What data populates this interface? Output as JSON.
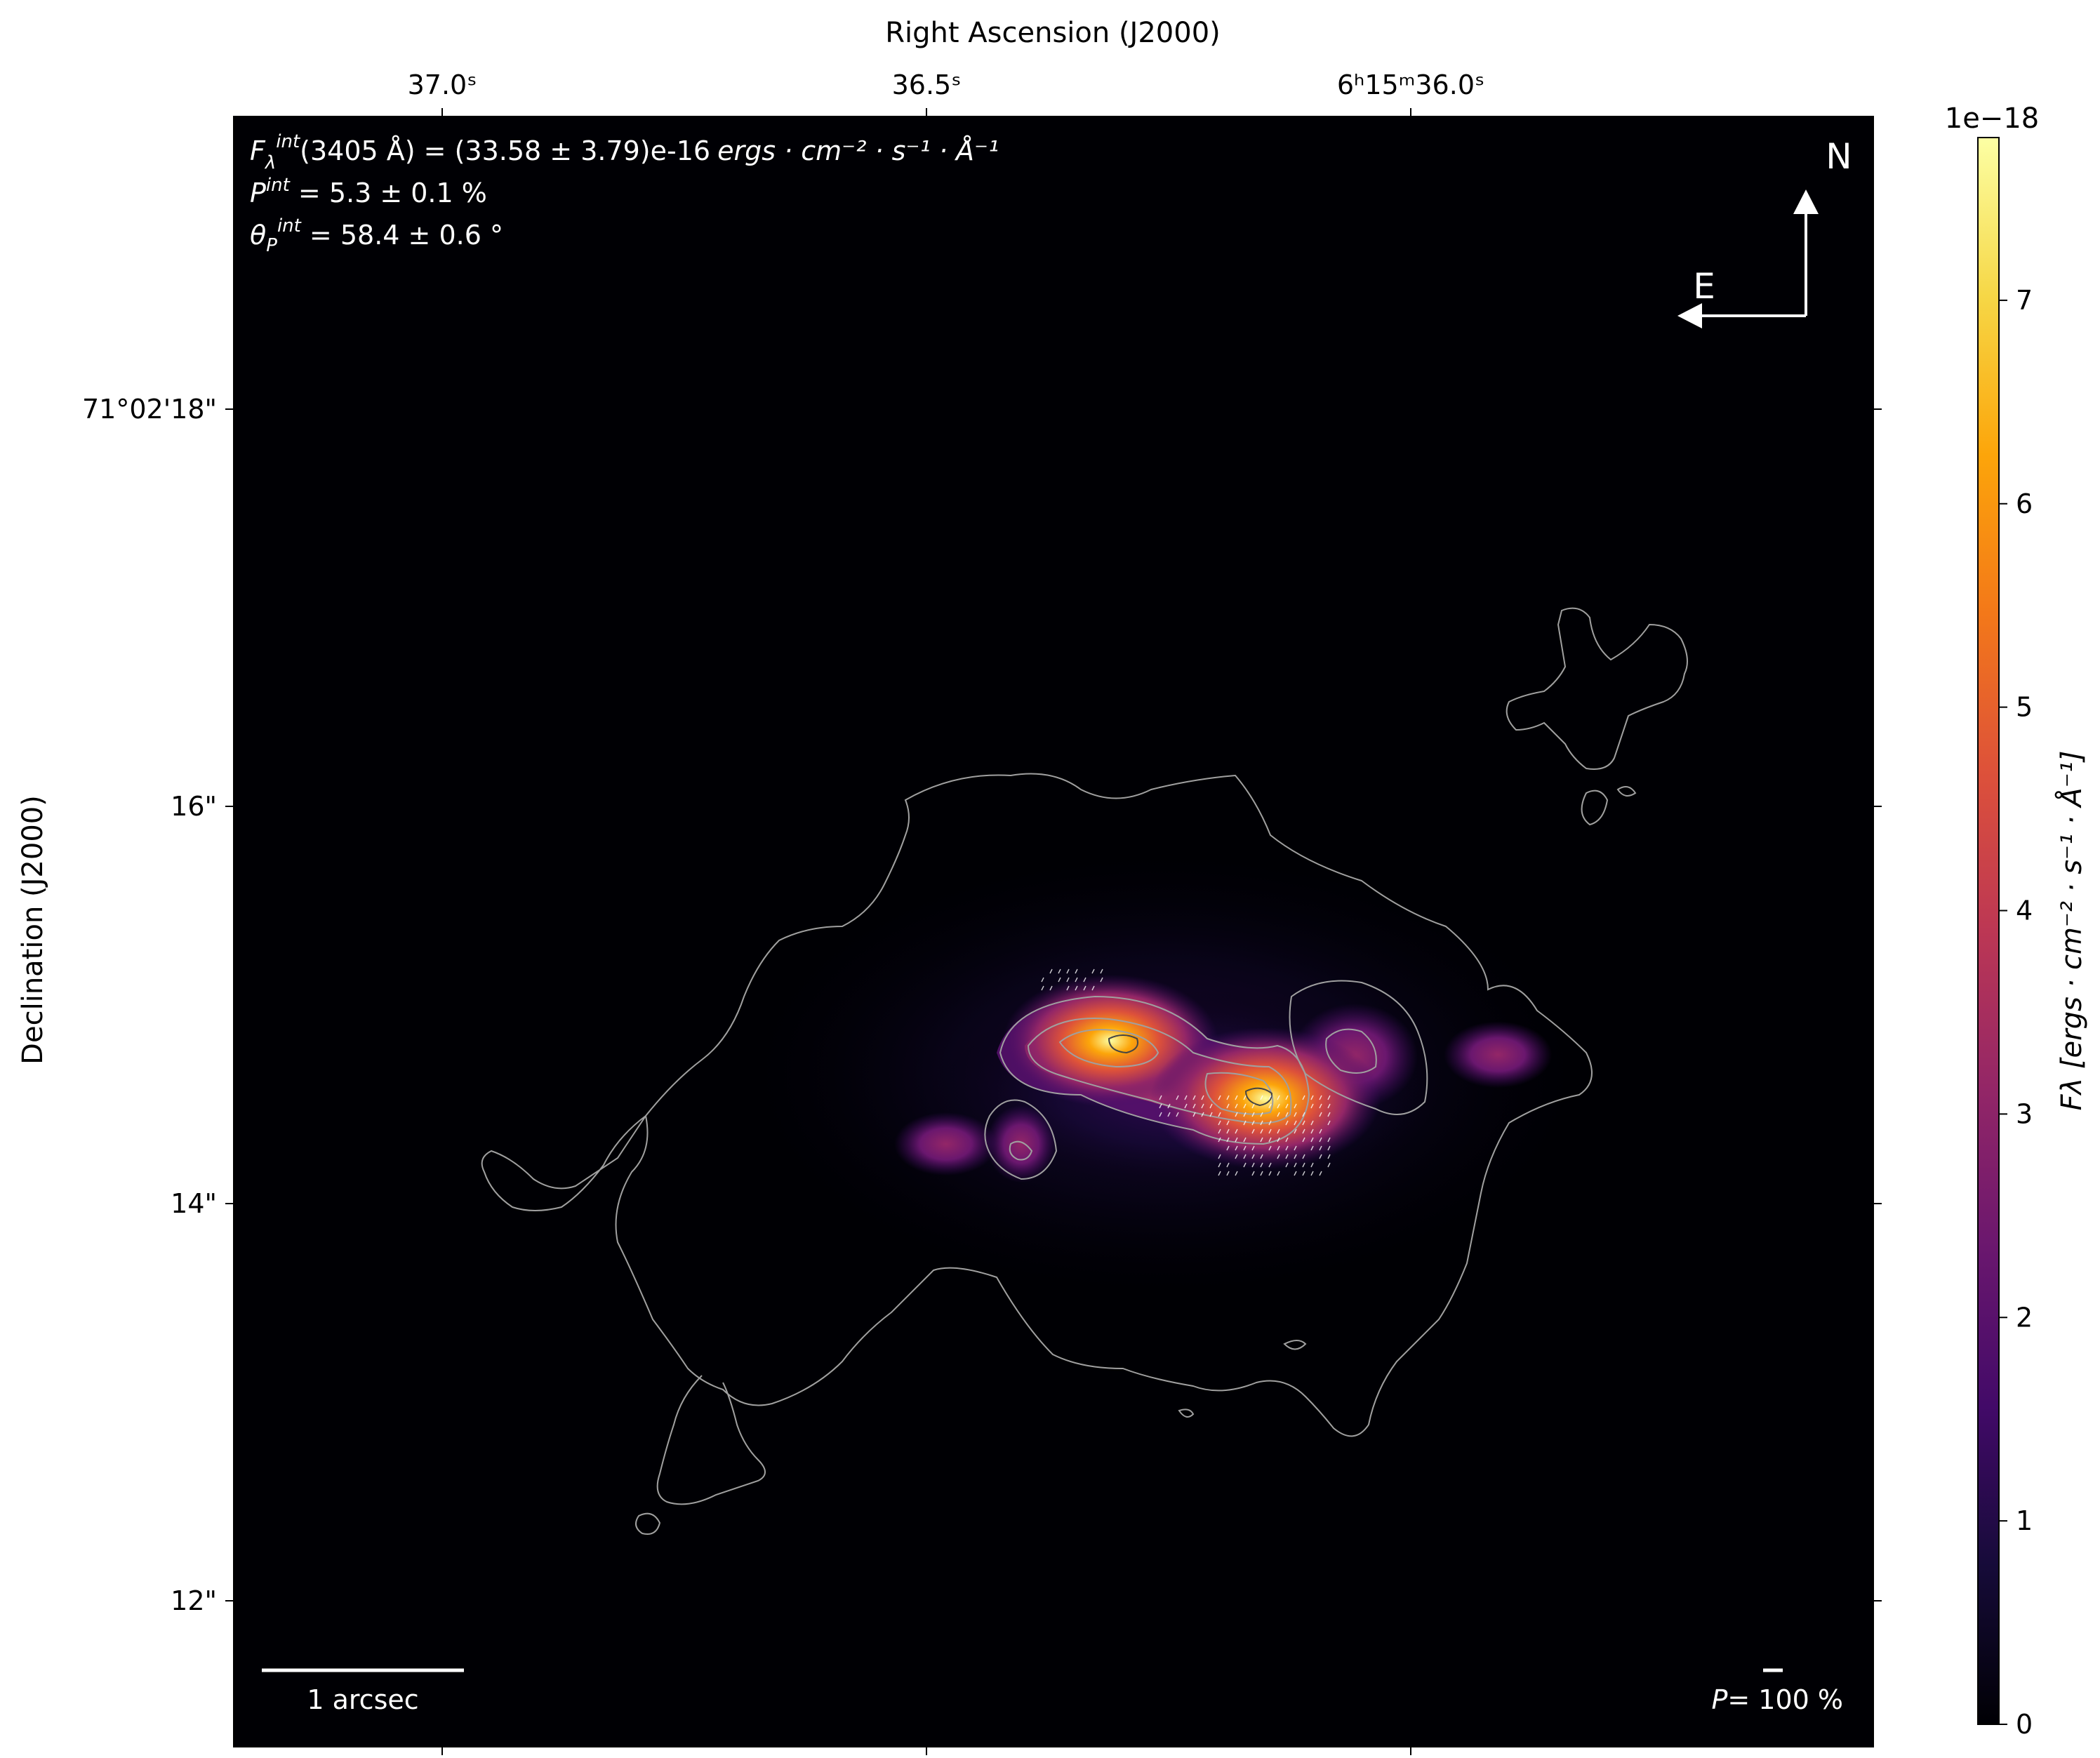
{
  "chart_data": {
    "type": "heatmap",
    "title": "",
    "x_axis": {
      "label": "Right Ascension (J2000)",
      "position": "top",
      "ticks": [
        {
          "value_s": 37.0,
          "label": "37.0ˢ"
        },
        {
          "value_s": 36.5,
          "label": "36.5ˢ"
        },
        {
          "value_s": 36.0,
          "label": "6ʰ15ᵐ36.0ˢ"
        }
      ]
    },
    "y_axis": {
      "label": "Declination (J2000)",
      "ticks": [
        {
          "value_arcsec": 18,
          "label": "71°02'18\""
        },
        {
          "value_arcsec": 16,
          "label": "16\""
        },
        {
          "value_arcsec": 14,
          "label": "14\""
        },
        {
          "value_arcsec": 12,
          "label": "12\""
        }
      ]
    },
    "colormap": "inferno",
    "colorbar": {
      "label": "F_λ [ergs·cm⁻²·s⁻¹·Å⁻¹]",
      "label_text": "Fλ [ergs · cm⁻² · s⁻¹ · Å⁻¹]",
      "multiplier": "1e−18",
      "range": [
        0,
        7.8
      ],
      "ticks": [
        0,
        1,
        2,
        3,
        4,
        5,
        6,
        7
      ],
      "tick_labels": [
        "0",
        "1",
        "2",
        "3",
        "4",
        "5",
        "6",
        "7"
      ]
    },
    "annotations": {
      "flux": "F_λ^int(3405 Å) = (33.58 ± 3.79)e-16 ergs·cm⁻²·s⁻¹·Å⁻¹",
      "polarization": "P^int = 5.3 ± 0.1 %",
      "angle": "θ_P^int = 58.4 ± 0.6 °",
      "scale_bar": "1 arcsec",
      "vector_scale": "P= 100 %",
      "compass_north": "N",
      "compass_east": "E"
    },
    "emission_peaks": [
      {
        "ra_s": 36.31,
        "dec_arcsec": 14.82,
        "flux_e18": 7.0
      },
      {
        "ra_s": 36.15,
        "dec_arcsec": 14.53,
        "flux_e18": 7.6
      },
      {
        "ra_s": 35.91,
        "dec_arcsec": 14.75,
        "flux_e18": 2.8
      },
      {
        "ra_s": 36.48,
        "dec_arcsec": 14.3,
        "flux_e18": 2.6
      }
    ],
    "grid": false
  },
  "text": {
    "xlabel": "Right Ascension (J2000)",
    "ylabel": "Declination (J2000)",
    "flux_line_main": "(3405 Å) = (33.58 ± 3.79)e-16",
    "flux_units": "ergs · cm⁻² · s⁻¹ · Å⁻¹",
    "pol_value": " = 5.3 ± 0.1 %",
    "angle_value": " = 58.4 ± 0.6 °",
    "scale_bar": "1 arcsec",
    "vector_scale_value": "= 100 %",
    "north": "N",
    "east": "E",
    "cb_multiplier": "1e−18"
  },
  "colors": {
    "background": "#000004",
    "contour": "#a0a0a0",
    "overlay_text": "#ffffff"
  }
}
